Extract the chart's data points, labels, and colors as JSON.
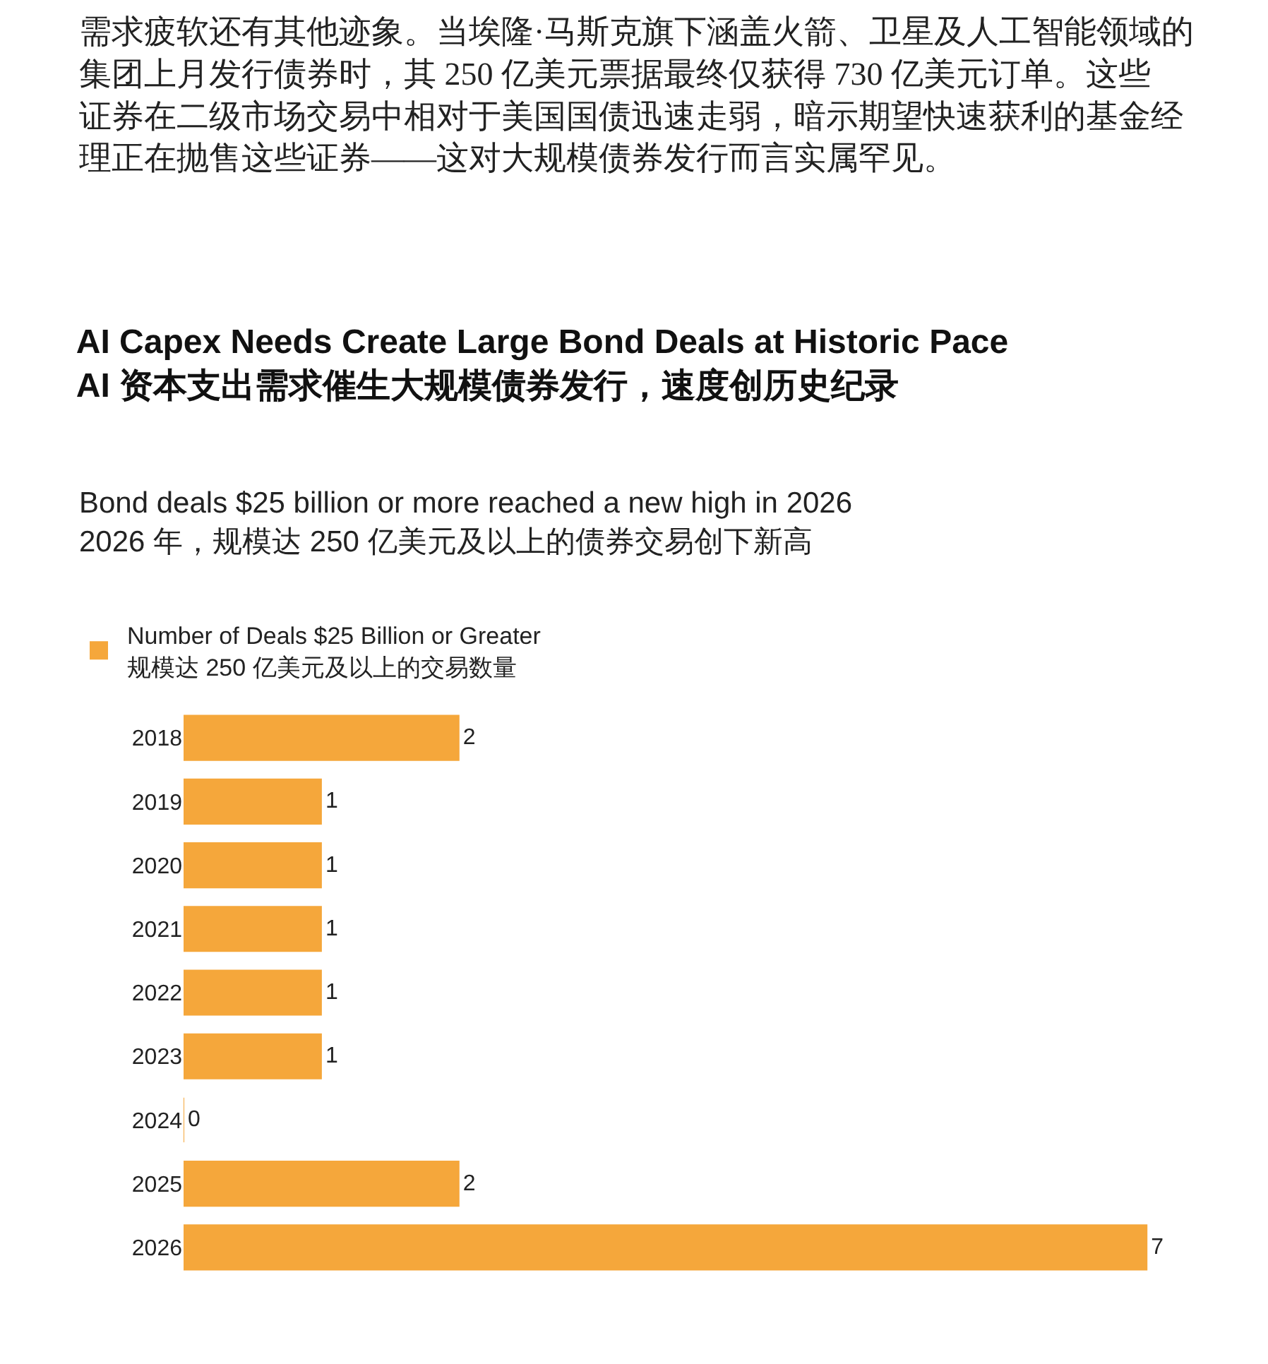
{
  "chart_data": {
    "type": "bar",
    "orientation": "horizontal",
    "title": "AI Capex Needs Create Large Bond Deals at Historic Pace\nAI 资本支出需求催生大规模债券发行，速度创历史纪录",
    "subtitle": "Bond deals $25 billion or more reached a new high in 2026\n2026 年，规模达 250 亿美元及以上的债券交易创下新高",
    "annotations": [
      "需求疲软还有其他迹象。当埃隆·马斯克旗下涵盖火箭、卫星及人工智能领域的集团上月发行债券时，其 250 亿美元票据最终仅获得 730 亿美元订单。这些证券在二级市场交易中相对于美国国债迅速走弱，暗示期望快速获利的基金经理正在抛售这些证券——这对大规模债券发行而言实属罕见。"
    ],
    "categories": [
      "2018",
      "2019",
      "2020",
      "2021",
      "2022",
      "2023",
      "2024",
      "2025",
      "2026"
    ],
    "series": [
      {
        "name": "Number of Deals $25 Billion or Greater\n规模达 250 亿美元及以上的交易数量",
        "color": "#f5a73b",
        "values": [
          2,
          1,
          1,
          1,
          1,
          1,
          0,
          2,
          7
        ]
      }
    ],
    "data_labels": true,
    "legend": "top left"
  }
}
